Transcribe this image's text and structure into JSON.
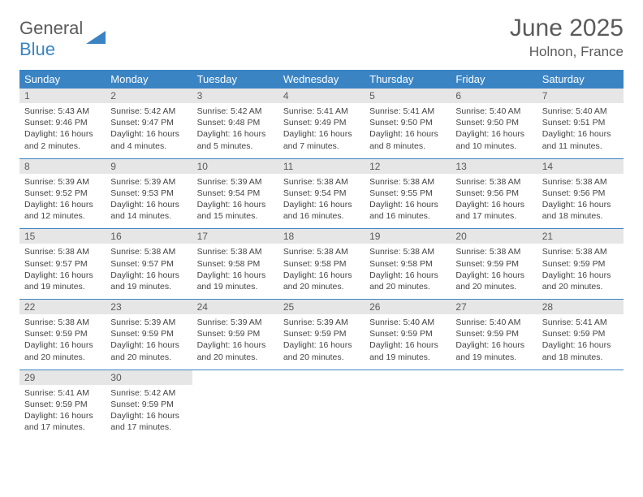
{
  "logo": {
    "general": "General",
    "blue": "Blue"
  },
  "title": "June 2025",
  "location": "Holnon, France",
  "colors": {
    "header_bg": "#3a84c4",
    "header_text": "#ffffff",
    "daynum_bg": "#e6e6e6",
    "text": "#5a5a5a",
    "body_text": "#444444",
    "rule": "#3a84c4"
  },
  "weekdays": [
    "Sunday",
    "Monday",
    "Tuesday",
    "Wednesday",
    "Thursday",
    "Friday",
    "Saturday"
  ],
  "weeks": [
    [
      {
        "n": "1",
        "sr": "5:43 AM",
        "ss": "9:46 PM",
        "dl": "16 hours and 2 minutes."
      },
      {
        "n": "2",
        "sr": "5:42 AM",
        "ss": "9:47 PM",
        "dl": "16 hours and 4 minutes."
      },
      {
        "n": "3",
        "sr": "5:42 AM",
        "ss": "9:48 PM",
        "dl": "16 hours and 5 minutes."
      },
      {
        "n": "4",
        "sr": "5:41 AM",
        "ss": "9:49 PM",
        "dl": "16 hours and 7 minutes."
      },
      {
        "n": "5",
        "sr": "5:41 AM",
        "ss": "9:50 PM",
        "dl": "16 hours and 8 minutes."
      },
      {
        "n": "6",
        "sr": "5:40 AM",
        "ss": "9:50 PM",
        "dl": "16 hours and 10 minutes."
      },
      {
        "n": "7",
        "sr": "5:40 AM",
        "ss": "9:51 PM",
        "dl": "16 hours and 11 minutes."
      }
    ],
    [
      {
        "n": "8",
        "sr": "5:39 AM",
        "ss": "9:52 PM",
        "dl": "16 hours and 12 minutes."
      },
      {
        "n": "9",
        "sr": "5:39 AM",
        "ss": "9:53 PM",
        "dl": "16 hours and 14 minutes."
      },
      {
        "n": "10",
        "sr": "5:39 AM",
        "ss": "9:54 PM",
        "dl": "16 hours and 15 minutes."
      },
      {
        "n": "11",
        "sr": "5:38 AM",
        "ss": "9:54 PM",
        "dl": "16 hours and 16 minutes."
      },
      {
        "n": "12",
        "sr": "5:38 AM",
        "ss": "9:55 PM",
        "dl": "16 hours and 16 minutes."
      },
      {
        "n": "13",
        "sr": "5:38 AM",
        "ss": "9:56 PM",
        "dl": "16 hours and 17 minutes."
      },
      {
        "n": "14",
        "sr": "5:38 AM",
        "ss": "9:56 PM",
        "dl": "16 hours and 18 minutes."
      }
    ],
    [
      {
        "n": "15",
        "sr": "5:38 AM",
        "ss": "9:57 PM",
        "dl": "16 hours and 19 minutes."
      },
      {
        "n": "16",
        "sr": "5:38 AM",
        "ss": "9:57 PM",
        "dl": "16 hours and 19 minutes."
      },
      {
        "n": "17",
        "sr": "5:38 AM",
        "ss": "9:58 PM",
        "dl": "16 hours and 19 minutes."
      },
      {
        "n": "18",
        "sr": "5:38 AM",
        "ss": "9:58 PM",
        "dl": "16 hours and 20 minutes."
      },
      {
        "n": "19",
        "sr": "5:38 AM",
        "ss": "9:58 PM",
        "dl": "16 hours and 20 minutes."
      },
      {
        "n": "20",
        "sr": "5:38 AM",
        "ss": "9:59 PM",
        "dl": "16 hours and 20 minutes."
      },
      {
        "n": "21",
        "sr": "5:38 AM",
        "ss": "9:59 PM",
        "dl": "16 hours and 20 minutes."
      }
    ],
    [
      {
        "n": "22",
        "sr": "5:38 AM",
        "ss": "9:59 PM",
        "dl": "16 hours and 20 minutes."
      },
      {
        "n": "23",
        "sr": "5:39 AM",
        "ss": "9:59 PM",
        "dl": "16 hours and 20 minutes."
      },
      {
        "n": "24",
        "sr": "5:39 AM",
        "ss": "9:59 PM",
        "dl": "16 hours and 20 minutes."
      },
      {
        "n": "25",
        "sr": "5:39 AM",
        "ss": "9:59 PM",
        "dl": "16 hours and 20 minutes."
      },
      {
        "n": "26",
        "sr": "5:40 AM",
        "ss": "9:59 PM",
        "dl": "16 hours and 19 minutes."
      },
      {
        "n": "27",
        "sr": "5:40 AM",
        "ss": "9:59 PM",
        "dl": "16 hours and 19 minutes."
      },
      {
        "n": "28",
        "sr": "5:41 AM",
        "ss": "9:59 PM",
        "dl": "16 hours and 18 minutes."
      }
    ],
    [
      {
        "n": "29",
        "sr": "5:41 AM",
        "ss": "9:59 PM",
        "dl": "16 hours and 17 minutes."
      },
      {
        "n": "30",
        "sr": "5:42 AM",
        "ss": "9:59 PM",
        "dl": "16 hours and 17 minutes."
      },
      null,
      null,
      null,
      null,
      null
    ]
  ],
  "labels": {
    "sunrise": "Sunrise:",
    "sunset": "Sunset:",
    "daylight": "Daylight:"
  }
}
